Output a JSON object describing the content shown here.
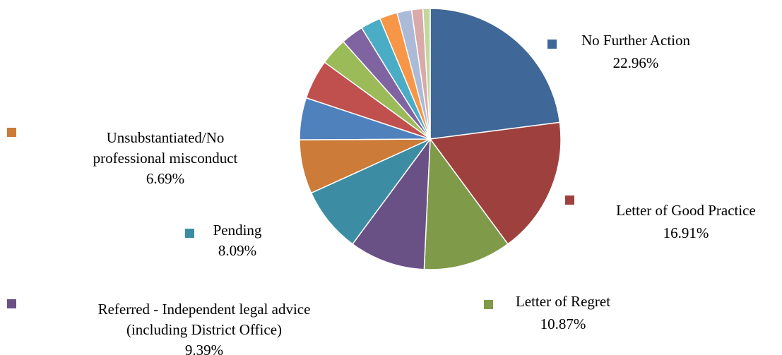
{
  "chart_data": {
    "type": "pie",
    "title": "",
    "start_angle_deg": 0,
    "direction": "clockwise",
    "slices": [
      {
        "label": "No Further Action",
        "value": 22.96,
        "value_label": "22.96%",
        "color": "#3F6797",
        "labeled": true
      },
      {
        "label": "Letter of Good Practice",
        "value": 16.91,
        "value_label": "16.91%",
        "color": "#9E413E",
        "labeled": true
      },
      {
        "label": "Letter of Regret",
        "value": 10.87,
        "value_label": "10.87%",
        "color": "#7F9A48",
        "labeled": true
      },
      {
        "label": "Referred - Independent legal advice (including District Office)",
        "value": 9.39,
        "value_label": "9.39%",
        "color": "#695185",
        "labeled": true
      },
      {
        "label": "Pending",
        "value": 8.09,
        "value_label": "8.09%",
        "color": "#3C8DA3",
        "labeled": true
      },
      {
        "label": "Unsubstantiated/No professional misconduct",
        "value": 6.69,
        "value_label": "6.69%",
        "color": "#CC7B38",
        "labeled": true
      },
      {
        "label": "",
        "value": 5.2,
        "color": "#4F81BD",
        "labeled": false
      },
      {
        "label": "",
        "value": 4.9,
        "color": "#C0504D",
        "labeled": false
      },
      {
        "label": "",
        "value": 3.4,
        "color": "#9BBB59",
        "labeled": false
      },
      {
        "label": "",
        "value": 2.8,
        "color": "#8064A2",
        "labeled": false
      },
      {
        "label": "",
        "value": 2.5,
        "color": "#4BACC6",
        "labeled": false
      },
      {
        "label": "",
        "value": 2.2,
        "color": "#F79646",
        "labeled": false
      },
      {
        "label": "",
        "value": 1.8,
        "color": "#AABAD7",
        "labeled": false
      },
      {
        "label": "",
        "value": 1.4,
        "color": "#D9AAA9",
        "labeled": false
      },
      {
        "label": "",
        "value": 0.89,
        "color": "#C3D69B",
        "labeled": false
      }
    ],
    "legend": [
      {
        "slice": 0,
        "lines": [
          "No Further Action",
          "22.96%"
        ],
        "color": "#3F6797"
      },
      {
        "slice": 1,
        "lines": [
          "Letter of Good Practice",
          "16.91%"
        ],
        "color": "#9E413E"
      },
      {
        "slice": 2,
        "lines": [
          "Letter of Regret",
          "10.87%"
        ],
        "color": "#7F9A48"
      },
      {
        "slice": 3,
        "lines": [
          "Referred - Independent legal advice",
          "(including District Office)",
          "9.39%"
        ],
        "color": "#695185"
      },
      {
        "slice": 4,
        "lines": [
          "Pending",
          "8.09%"
        ],
        "color": "#3C8DA3"
      },
      {
        "slice": 5,
        "lines": [
          "Unsubstantiated/No",
          "professional misconduct",
          "6.69%"
        ],
        "color": "#CC7B38"
      }
    ]
  }
}
